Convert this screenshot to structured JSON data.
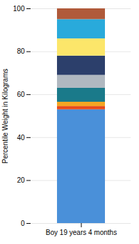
{
  "chart_data": {
    "type": "bar",
    "categories": [
      "Boy 19 years 4 months"
    ],
    "ylabel": "Percentile Weight in Kilograms",
    "series": [
      {
        "color": "#4a90d9",
        "values": [
          53
        ]
      },
      {
        "color": "#e84a1a",
        "values": [
          1.5
        ]
      },
      {
        "color": "#f5a623",
        "values": [
          2
        ]
      },
      {
        "color": "#1a7a8a",
        "values": [
          6.5
        ]
      },
      {
        "color": "#b0b8c0",
        "values": [
          6
        ]
      },
      {
        "color": "#2c3f6b",
        "values": [
          9
        ]
      },
      {
        "color": "#fce66a",
        "values": [
          8
        ]
      },
      {
        "color": "#29aadb",
        "values": [
          9
        ]
      },
      {
        "color": "#b05a3a",
        "values": [
          5
        ]
      }
    ],
    "stacked": true,
    "ylim": [
      0,
      100
    ],
    "yticks": [
      0,
      20,
      40,
      60,
      80,
      100
    ],
    "grid": true
  }
}
